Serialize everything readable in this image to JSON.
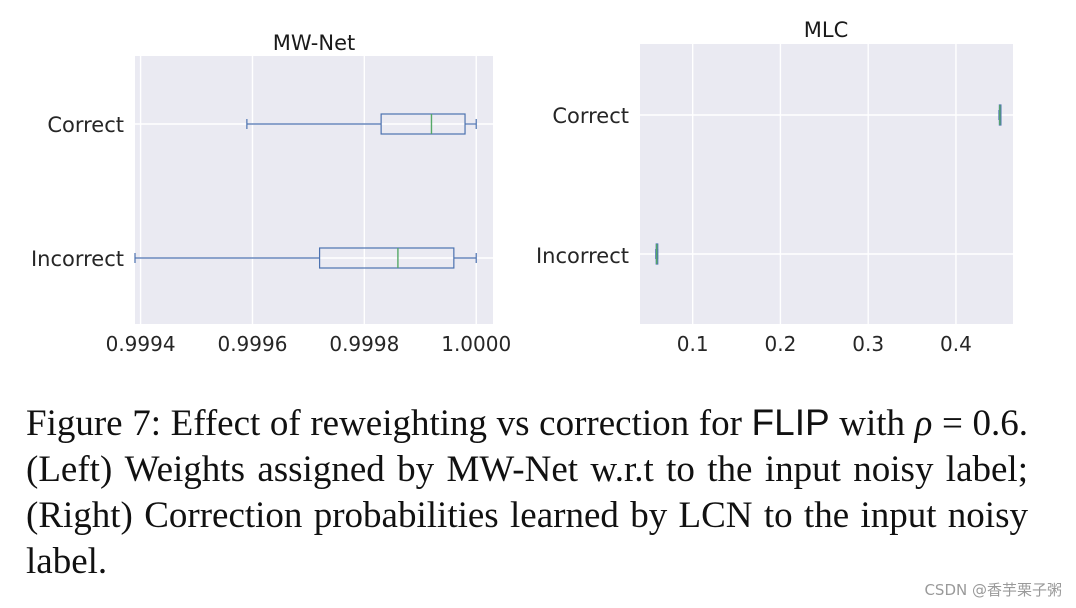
{
  "chart_data": [
    {
      "type": "box",
      "title": "MW-Net",
      "orientation": "horizontal",
      "categories": [
        "Correct",
        "Incorrect"
      ],
      "xlim": [
        0.99939,
        1.00003
      ],
      "xticks": [
        0.9994,
        0.9996,
        0.9998,
        1.0
      ],
      "xtick_labels": [
        "0.9994",
        "0.9996",
        "0.9998",
        "1.0000"
      ],
      "boxes": [
        {
          "category": "Correct",
          "whisker_low": 0.99959,
          "q1": 0.99983,
          "median": 0.99992,
          "q3": 0.99998,
          "whisker_high": 1.0
        },
        {
          "category": "Incorrect",
          "whisker_low": 0.99939,
          "q1": 0.99972,
          "median": 0.99986,
          "q3": 0.99996,
          "whisker_high": 1.0
        }
      ],
      "grid": true
    },
    {
      "type": "box",
      "title": "MLC",
      "orientation": "horizontal",
      "categories": [
        "Correct",
        "Incorrect"
      ],
      "xlim": [
        0.04,
        0.465
      ],
      "xticks": [
        0.1,
        0.2,
        0.3,
        0.4
      ],
      "xtick_labels": [
        "0.1",
        "0.2",
        "0.3",
        "0.4"
      ],
      "boxes": [
        {
          "category": "Correct",
          "whisker_low": 0.449,
          "q1": 0.4495,
          "median": 0.45,
          "q3": 0.4505,
          "whisker_high": 0.451
        },
        {
          "category": "Incorrect",
          "whisker_low": 0.058,
          "q1": 0.0585,
          "median": 0.059,
          "q3": 0.0595,
          "whisker_high": 0.06
        }
      ],
      "grid": true
    }
  ],
  "colors": {
    "panel_bg": "#eaeaf2",
    "grid": "#ffffff",
    "box": "#4c72b0",
    "median": "#55a868"
  },
  "caption": {
    "line1_pre": "Figure 7: Effect of reweighting vs correction for ",
    "line1_sans": "FLIP",
    "line1_post": " with",
    "rho": "ρ",
    "equals": " = 0.6.",
    "line2_rest": " (Left) Weights assigned by MW-Net w.r.t to the input noisy label; (Right) Correction probabilities learned by LCN to the input noisy label."
  },
  "watermark": "CSDN @香芋栗子粥"
}
